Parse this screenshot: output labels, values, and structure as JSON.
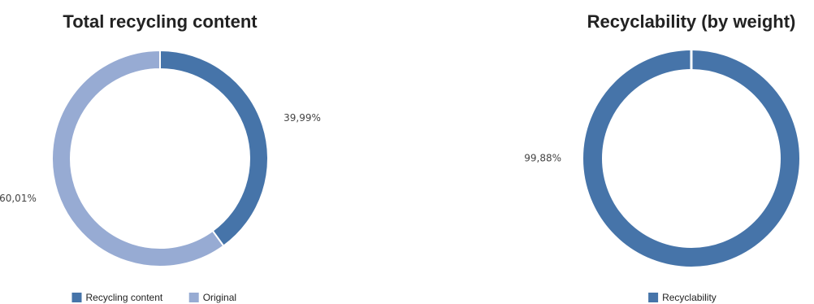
{
  "chart_data": [
    {
      "type": "donut",
      "title": "Total recycling content",
      "categories": [
        "Recycling content",
        "Original"
      ],
      "values": [
        39.99,
        60.01
      ],
      "value_labels": [
        "39,99%",
        "60,01%"
      ],
      "colors": [
        "#4674a9",
        "#97abd3"
      ]
    },
    {
      "type": "donut",
      "title": "Recyclability (by weight)",
      "categories": [
        "Recyclability"
      ],
      "values": [
        99.88
      ],
      "value_labels": [
        "99,88%"
      ],
      "colors": [
        "#4674a9"
      ]
    }
  ]
}
